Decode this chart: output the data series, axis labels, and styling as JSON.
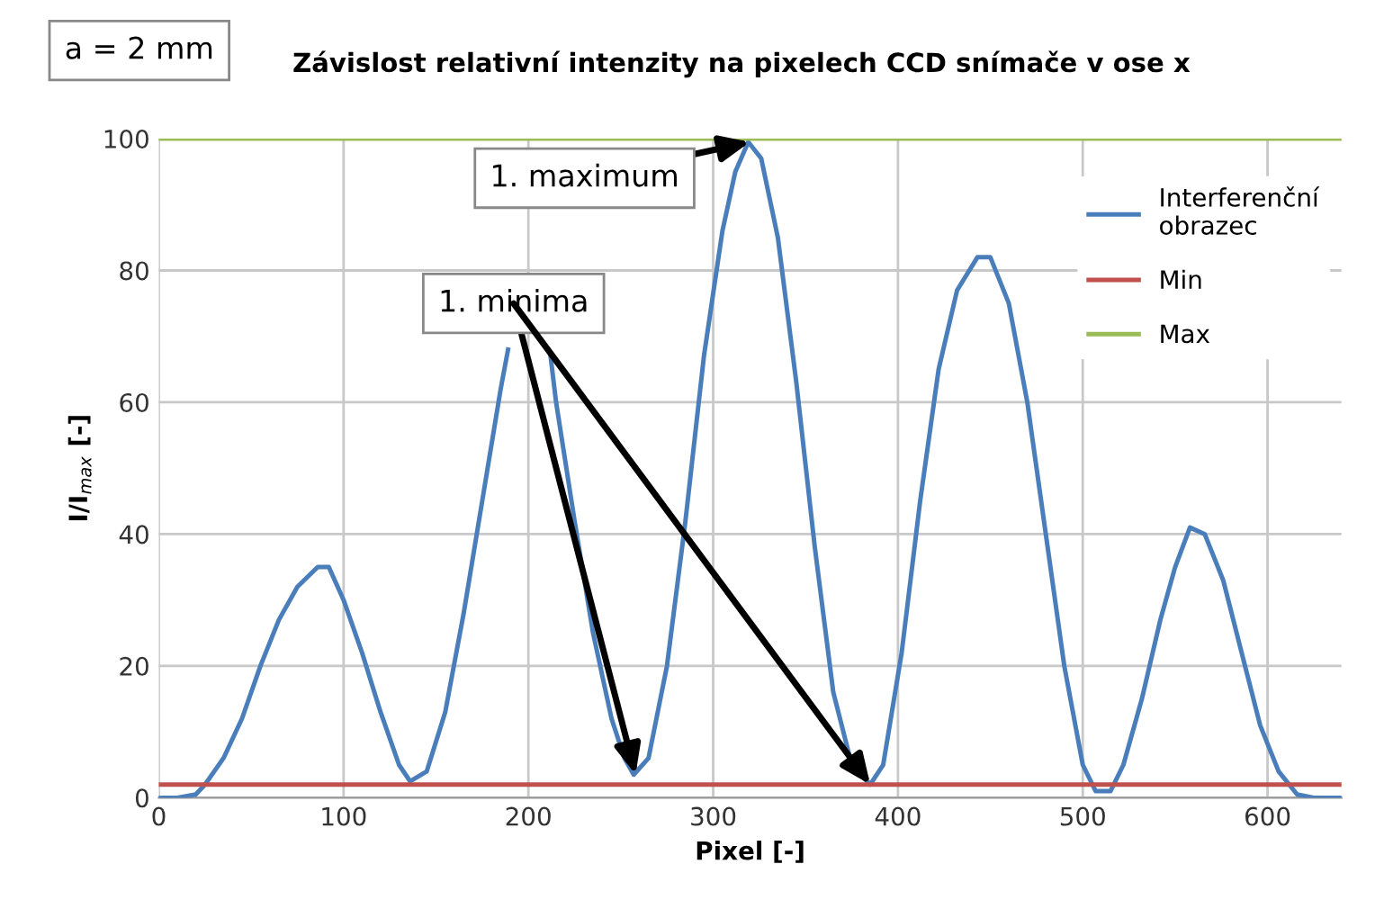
{
  "chart_data": {
    "type": "line",
    "title": "Závislost relativní intenzity na pixelech CCD snímače v ose x",
    "xlabel": "Pixel [-]",
    "ylabel": "I/I$_{max}$ [-]",
    "xlim": [
      0,
      640
    ],
    "xticks": [
      0,
      100,
      200,
      300,
      400,
      500,
      600
    ],
    "ylim": [
      0,
      100
    ],
    "yticks": [
      0,
      20,
      40,
      60,
      80,
      100
    ],
    "grid": true,
    "legend": "top right",
    "annotations": [
      "a = 2 mm",
      {
        "text": "1. maximum",
        "x": 320,
        "y": 99.5
      },
      {
        "text": "1. minima",
        "x": 258,
        "y": 3.5
      }
    ],
    "series": [
      {
        "name": "Interferenční obrazec",
        "color": "#4a7ebb",
        "x": [
          0,
          10,
          20,
          25,
          35,
          45,
          55,
          65,
          75,
          86,
          92,
          100,
          110,
          120,
          130,
          136,
          145,
          155,
          165,
          175,
          185,
          189,
          193,
          199,
          207,
          212,
          215,
          225,
          235,
          245,
          252,
          257,
          265,
          275,
          285,
          295,
          305,
          312,
          319,
          326,
          335,
          345,
          355,
          365,
          375,
          385,
          392,
          402,
          412,
          422,
          432,
          443,
          450,
          460,
          470,
          480,
          490,
          500,
          507,
          515,
          522,
          532,
          542,
          550,
          558,
          566,
          576,
          586,
          596,
          606,
          616,
          625,
          640
        ],
        "values": [
          0,
          0,
          0.5,
          2,
          6,
          12,
          20,
          27,
          32,
          35,
          35,
          30,
          22,
          13,
          5,
          2.5,
          4,
          13,
          28,
          45,
          62,
          68,
          null,
          null,
          null,
          67,
          60,
          42,
          25,
          12,
          6,
          3.5,
          6,
          20,
          42,
          67,
          86,
          95,
          99.5,
          97,
          85,
          63,
          38,
          16,
          5,
          2,
          5,
          22,
          45,
          65,
          77,
          82,
          82,
          75,
          60,
          40,
          20,
          5,
          1,
          1,
          5,
          15,
          27,
          35,
          41,
          40,
          33,
          22,
          11,
          4,
          0.5,
          0,
          0
        ]
      },
      {
        "name": "Min",
        "color": "#c0504d",
        "x": [
          0,
          640
        ],
        "values": [
          2,
          2
        ]
      },
      {
        "name": "Max",
        "color": "#9bbb59",
        "x": [
          0,
          640
        ],
        "values": [
          100,
          100
        ]
      }
    ]
  }
}
